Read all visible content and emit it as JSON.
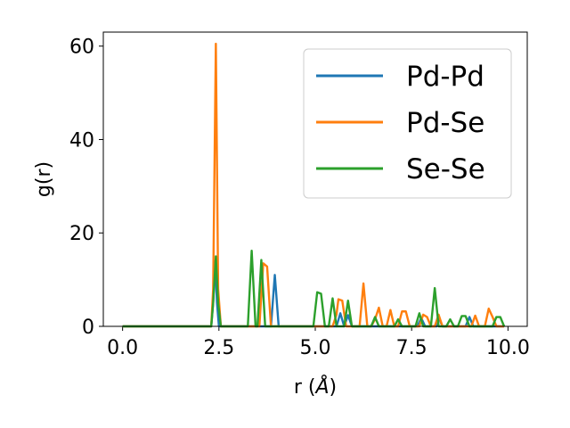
{
  "chart_data": {
    "type": "line",
    "xlabel": "r (",
    "xlabel_symbol": "Å",
    "xlabel_close": ")",
    "ylabel": "g(r)",
    "xlim": [
      -0.5,
      10.5
    ],
    "ylim": [
      0,
      63
    ],
    "xticks": [
      0.0,
      2.5,
      5.0,
      7.5,
      10.0
    ],
    "xtick_labels": [
      "0.0",
      "2.5",
      "5.0",
      "7.5",
      "10.0"
    ],
    "yticks": [
      0,
      20,
      40,
      60
    ],
    "ytick_labels": [
      "0",
      "20",
      "40",
      "60"
    ],
    "grid": false,
    "legend_position": "top-right",
    "series": [
      {
        "name": "Pd-Pd",
        "color": "#1f77b4",
        "points": [
          [
            0.0,
            0
          ],
          [
            2.3,
            0
          ],
          [
            2.35,
            5.0
          ],
          [
            2.4,
            14.0
          ],
          [
            2.45,
            5.0
          ],
          [
            2.5,
            0
          ],
          [
            3.85,
            0
          ],
          [
            3.95,
            11.0
          ],
          [
            4.05,
            0
          ],
          [
            5.55,
            0
          ],
          [
            5.65,
            2.8
          ],
          [
            5.75,
            0
          ],
          [
            5.85,
            2.4
          ],
          [
            5.95,
            0
          ],
          [
            7.65,
            0
          ],
          [
            7.75,
            1.8
          ],
          [
            7.85,
            0
          ],
          [
            8.15,
            0
          ],
          [
            8.2,
            2.0
          ],
          [
            8.3,
            0
          ],
          [
            8.9,
            0
          ],
          [
            9.0,
            2.0
          ],
          [
            9.1,
            0
          ],
          [
            9.9,
            0
          ]
        ]
      },
      {
        "name": "Pd-Se",
        "color": "#ff7f0e",
        "points": [
          [
            0.0,
            0
          ],
          [
            2.3,
            0
          ],
          [
            2.35,
            8.0
          ],
          [
            2.42,
            60.5
          ],
          [
            2.48,
            8.0
          ],
          [
            2.55,
            0
          ],
          [
            3.55,
            0
          ],
          [
            3.65,
            13.5
          ],
          [
            3.75,
            12.8
          ],
          [
            3.85,
            0
          ],
          [
            5.45,
            0
          ],
          [
            5.55,
            2.5
          ],
          [
            5.6,
            5.8
          ],
          [
            5.7,
            5.5
          ],
          [
            5.8,
            0
          ],
          [
            6.15,
            0
          ],
          [
            6.25,
            9.2
          ],
          [
            6.35,
            0
          ],
          [
            6.45,
            0
          ],
          [
            6.55,
            1.5
          ],
          [
            6.65,
            4.0
          ],
          [
            6.75,
            0
          ],
          [
            6.85,
            0
          ],
          [
            6.95,
            3.5
          ],
          [
            7.05,
            0
          ],
          [
            7.15,
            0
          ],
          [
            7.25,
            3.2
          ],
          [
            7.35,
            3.2
          ],
          [
            7.45,
            0
          ],
          [
            7.7,
            0
          ],
          [
            7.8,
            2.5
          ],
          [
            7.9,
            2.0
          ],
          [
            8.0,
            0
          ],
          [
            8.1,
            0
          ],
          [
            8.2,
            2.5
          ],
          [
            8.3,
            0
          ],
          [
            9.05,
            0
          ],
          [
            9.15,
            2.3
          ],
          [
            9.25,
            0
          ],
          [
            9.4,
            0
          ],
          [
            9.5,
            3.8
          ],
          [
            9.6,
            2.0
          ],
          [
            9.7,
            0
          ],
          [
            9.9,
            0
          ]
        ]
      },
      {
        "name": "Se-Se",
        "color": "#2ca02c",
        "points": [
          [
            0.0,
            0
          ],
          [
            2.3,
            0
          ],
          [
            2.35,
            5.0
          ],
          [
            2.42,
            15.0
          ],
          [
            2.48,
            5.0
          ],
          [
            2.55,
            0
          ],
          [
            3.25,
            0
          ],
          [
            3.35,
            16.2
          ],
          [
            3.45,
            0
          ],
          [
            3.5,
            0
          ],
          [
            3.6,
            14.2
          ],
          [
            3.7,
            0
          ],
          [
            4.95,
            0
          ],
          [
            5.05,
            7.3
          ],
          [
            5.15,
            7.0
          ],
          [
            5.25,
            0
          ],
          [
            5.35,
            0
          ],
          [
            5.45,
            6.0
          ],
          [
            5.55,
            0
          ],
          [
            5.75,
            0
          ],
          [
            5.85,
            5.5
          ],
          [
            5.95,
            0
          ],
          [
            6.45,
            0
          ],
          [
            6.55,
            2.0
          ],
          [
            6.65,
            0
          ],
          [
            7.05,
            0
          ],
          [
            7.15,
            1.5
          ],
          [
            7.25,
            0
          ],
          [
            7.6,
            0
          ],
          [
            7.7,
            2.8
          ],
          [
            7.8,
            0
          ],
          [
            8.0,
            0
          ],
          [
            8.1,
            8.2
          ],
          [
            8.2,
            0
          ],
          [
            8.4,
            0
          ],
          [
            8.5,
            1.5
          ],
          [
            8.6,
            0
          ],
          [
            8.7,
            0
          ],
          [
            8.8,
            2.2
          ],
          [
            8.9,
            2.2
          ],
          [
            9.0,
            0
          ],
          [
            9.6,
            0
          ],
          [
            9.7,
            2.0
          ],
          [
            9.8,
            2.0
          ],
          [
            9.9,
            0
          ]
        ]
      }
    ]
  }
}
